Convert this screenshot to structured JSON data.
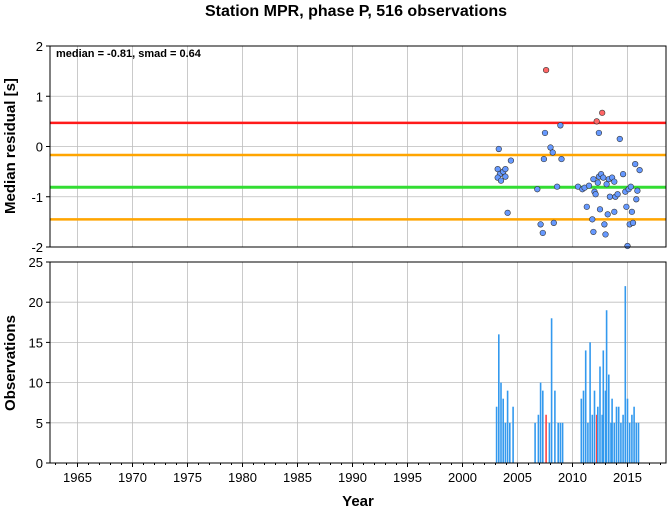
{
  "chart_data": [
    {
      "type": "scatter",
      "title": "Station MPR, phase P, 516 observations",
      "ylabel": "Median residual [s]",
      "annotation": "median = -0.81, smad = 0.64",
      "xlim": [
        1962.5,
        2018.5
      ],
      "ylim": [
        -2,
        2
      ],
      "yticks": [
        "-2",
        "-1",
        "0",
        "1",
        "2"
      ],
      "grid": true,
      "reference_lines": [
        {
          "y": 0.47,
          "color": "#ff1a1a"
        },
        {
          "y": -0.17,
          "color": "#ffa500"
        },
        {
          "y": -0.81,
          "color": "#33dd33"
        },
        {
          "y": -1.45,
          "color": "#ffa500"
        }
      ],
      "point_color": "#6699ff",
      "outlier_color": "#ff6666",
      "points": [
        {
          "x": 2003.3,
          "y": -0.05
        },
        {
          "x": 2003.2,
          "y": -0.45
        },
        {
          "x": 2003.4,
          "y": -0.55
        },
        {
          "x": 2003.2,
          "y": -0.62
        },
        {
          "x": 2003.5,
          "y": -0.68
        },
        {
          "x": 2003.7,
          "y": -0.5
        },
        {
          "x": 2003.9,
          "y": -0.45
        },
        {
          "x": 2003.9,
          "y": -0.6
        },
        {
          "x": 2004.1,
          "y": -1.32
        },
        {
          "x": 2004.4,
          "y": -0.28
        },
        {
          "x": 2006.8,
          "y": -0.85
        },
        {
          "x": 2007.1,
          "y": -1.55
        },
        {
          "x": 2007.3,
          "y": -1.72
        },
        {
          "x": 2007.4,
          "y": -0.25
        },
        {
          "x": 2007.5,
          "y": 0.27
        },
        {
          "x": 2007.6,
          "y": 1.52,
          "outlier": true
        },
        {
          "x": 2008.0,
          "y": -0.02
        },
        {
          "x": 2008.2,
          "y": -0.12
        },
        {
          "x": 2008.3,
          "y": -1.52
        },
        {
          "x": 2008.6,
          "y": -0.8
        },
        {
          "x": 2008.9,
          "y": 0.42
        },
        {
          "x": 2009.0,
          "y": -0.25
        },
        {
          "x": 2010.5,
          "y": -0.8
        },
        {
          "x": 2010.9,
          "y": -0.85
        },
        {
          "x": 2011.1,
          "y": -0.82
        },
        {
          "x": 2011.3,
          "y": -1.2
        },
        {
          "x": 2011.5,
          "y": -0.78
        },
        {
          "x": 2011.8,
          "y": -1.45
        },
        {
          "x": 2011.9,
          "y": -1.7
        },
        {
          "x": 2011.9,
          "y": -0.65
        },
        {
          "x": 2012.0,
          "y": -0.9
        },
        {
          "x": 2012.1,
          "y": -0.95
        },
        {
          "x": 2012.2,
          "y": 0.5,
          "outlier": true
        },
        {
          "x": 2012.3,
          "y": -0.72
        },
        {
          "x": 2012.4,
          "y": 0.27
        },
        {
          "x": 2012.4,
          "y": -0.6
        },
        {
          "x": 2012.5,
          "y": -1.25
        },
        {
          "x": 2012.6,
          "y": -0.55
        },
        {
          "x": 2012.7,
          "y": 0.67,
          "outlier": true
        },
        {
          "x": 2012.8,
          "y": -0.62
        },
        {
          "x": 2012.9,
          "y": -1.55
        },
        {
          "x": 2013.0,
          "y": -1.75
        },
        {
          "x": 2013.1,
          "y": -0.75
        },
        {
          "x": 2013.2,
          "y": -1.35
        },
        {
          "x": 2013.3,
          "y": -0.65
        },
        {
          "x": 2013.4,
          "y": -1.0
        },
        {
          "x": 2013.6,
          "y": -0.62
        },
        {
          "x": 2013.8,
          "y": -1.3
        },
        {
          "x": 2013.8,
          "y": -0.7
        },
        {
          "x": 2013.9,
          "y": -1.0
        },
        {
          "x": 2014.1,
          "y": -0.95
        },
        {
          "x": 2014.3,
          "y": 0.15
        },
        {
          "x": 2014.6,
          "y": -0.55
        },
        {
          "x": 2014.8,
          "y": -0.9
        },
        {
          "x": 2014.9,
          "y": -1.2
        },
        {
          "x": 2015.0,
          "y": -1.98
        },
        {
          "x": 2015.1,
          "y": -0.85
        },
        {
          "x": 2015.2,
          "y": -1.55
        },
        {
          "x": 2015.3,
          "y": -0.8
        },
        {
          "x": 2015.4,
          "y": -1.3
        },
        {
          "x": 2015.5,
          "y": -1.52
        },
        {
          "x": 2015.7,
          "y": -0.35
        },
        {
          "x": 2015.8,
          "y": -1.05
        },
        {
          "x": 2015.9,
          "y": -0.88
        },
        {
          "x": 2016.1,
          "y": -0.47
        }
      ]
    },
    {
      "type": "bar",
      "xlabel": "Year",
      "ylabel": "Observations",
      "xlim": [
        1962.5,
        2018.5
      ],
      "ylim": [
        0,
        25
      ],
      "xticks": [
        "1965",
        "1970",
        "1975",
        "1980",
        "1985",
        "1990",
        "1995",
        "2000",
        "2005",
        "2010",
        "2015"
      ],
      "yticks": [
        "0",
        "5",
        "10",
        "15",
        "20",
        "25"
      ],
      "grid": true,
      "bar_color": "#3399ee",
      "highlight_color": "#ff4444",
      "bars": [
        {
          "x": 2003.1,
          "y": 7
        },
        {
          "x": 2003.3,
          "y": 16
        },
        {
          "x": 2003.5,
          "y": 10
        },
        {
          "x": 2003.7,
          "y": 8
        },
        {
          "x": 2003.9,
          "y": 5
        },
        {
          "x": 2004.1,
          "y": 9
        },
        {
          "x": 2004.3,
          "y": 5
        },
        {
          "x": 2004.6,
          "y": 7
        },
        {
          "x": 2006.6,
          "y": 5
        },
        {
          "x": 2006.9,
          "y": 6
        },
        {
          "x": 2007.1,
          "y": 10
        },
        {
          "x": 2007.3,
          "y": 9
        },
        {
          "x": 2007.6,
          "y": 6,
          "highlight": true
        },
        {
          "x": 2007.9,
          "y": 5
        },
        {
          "x": 2008.1,
          "y": 18
        },
        {
          "x": 2008.4,
          "y": 9
        },
        {
          "x": 2008.7,
          "y": 5
        },
        {
          "x": 2008.9,
          "y": 5
        },
        {
          "x": 2009.1,
          "y": 5
        },
        {
          "x": 2010.8,
          "y": 8
        },
        {
          "x": 2011.0,
          "y": 9
        },
        {
          "x": 2011.2,
          "y": 14
        },
        {
          "x": 2011.4,
          "y": 5
        },
        {
          "x": 2011.6,
          "y": 15
        },
        {
          "x": 2011.8,
          "y": 6
        },
        {
          "x": 2012.0,
          "y": 9
        },
        {
          "x": 2012.2,
          "y": 6,
          "highlight": true
        },
        {
          "x": 2012.3,
          "y": 7
        },
        {
          "x": 2012.5,
          "y": 12
        },
        {
          "x": 2012.7,
          "y": 6
        },
        {
          "x": 2012.8,
          "y": 14
        },
        {
          "x": 2013.0,
          "y": 9
        },
        {
          "x": 2013.1,
          "y": 19
        },
        {
          "x": 2013.3,
          "y": 11
        },
        {
          "x": 2013.5,
          "y": 5
        },
        {
          "x": 2013.6,
          "y": 8
        },
        {
          "x": 2013.8,
          "y": 5
        },
        {
          "x": 2014.0,
          "y": 7
        },
        {
          "x": 2014.2,
          "y": 7
        },
        {
          "x": 2014.4,
          "y": 5
        },
        {
          "x": 2014.6,
          "y": 6
        },
        {
          "x": 2014.8,
          "y": 22
        },
        {
          "x": 2015.0,
          "y": 8
        },
        {
          "x": 2015.2,
          "y": 5
        },
        {
          "x": 2015.4,
          "y": 6
        },
        {
          "x": 2015.6,
          "y": 7
        },
        {
          "x": 2015.8,
          "y": 5
        },
        {
          "x": 2016.0,
          "y": 5
        }
      ]
    }
  ]
}
